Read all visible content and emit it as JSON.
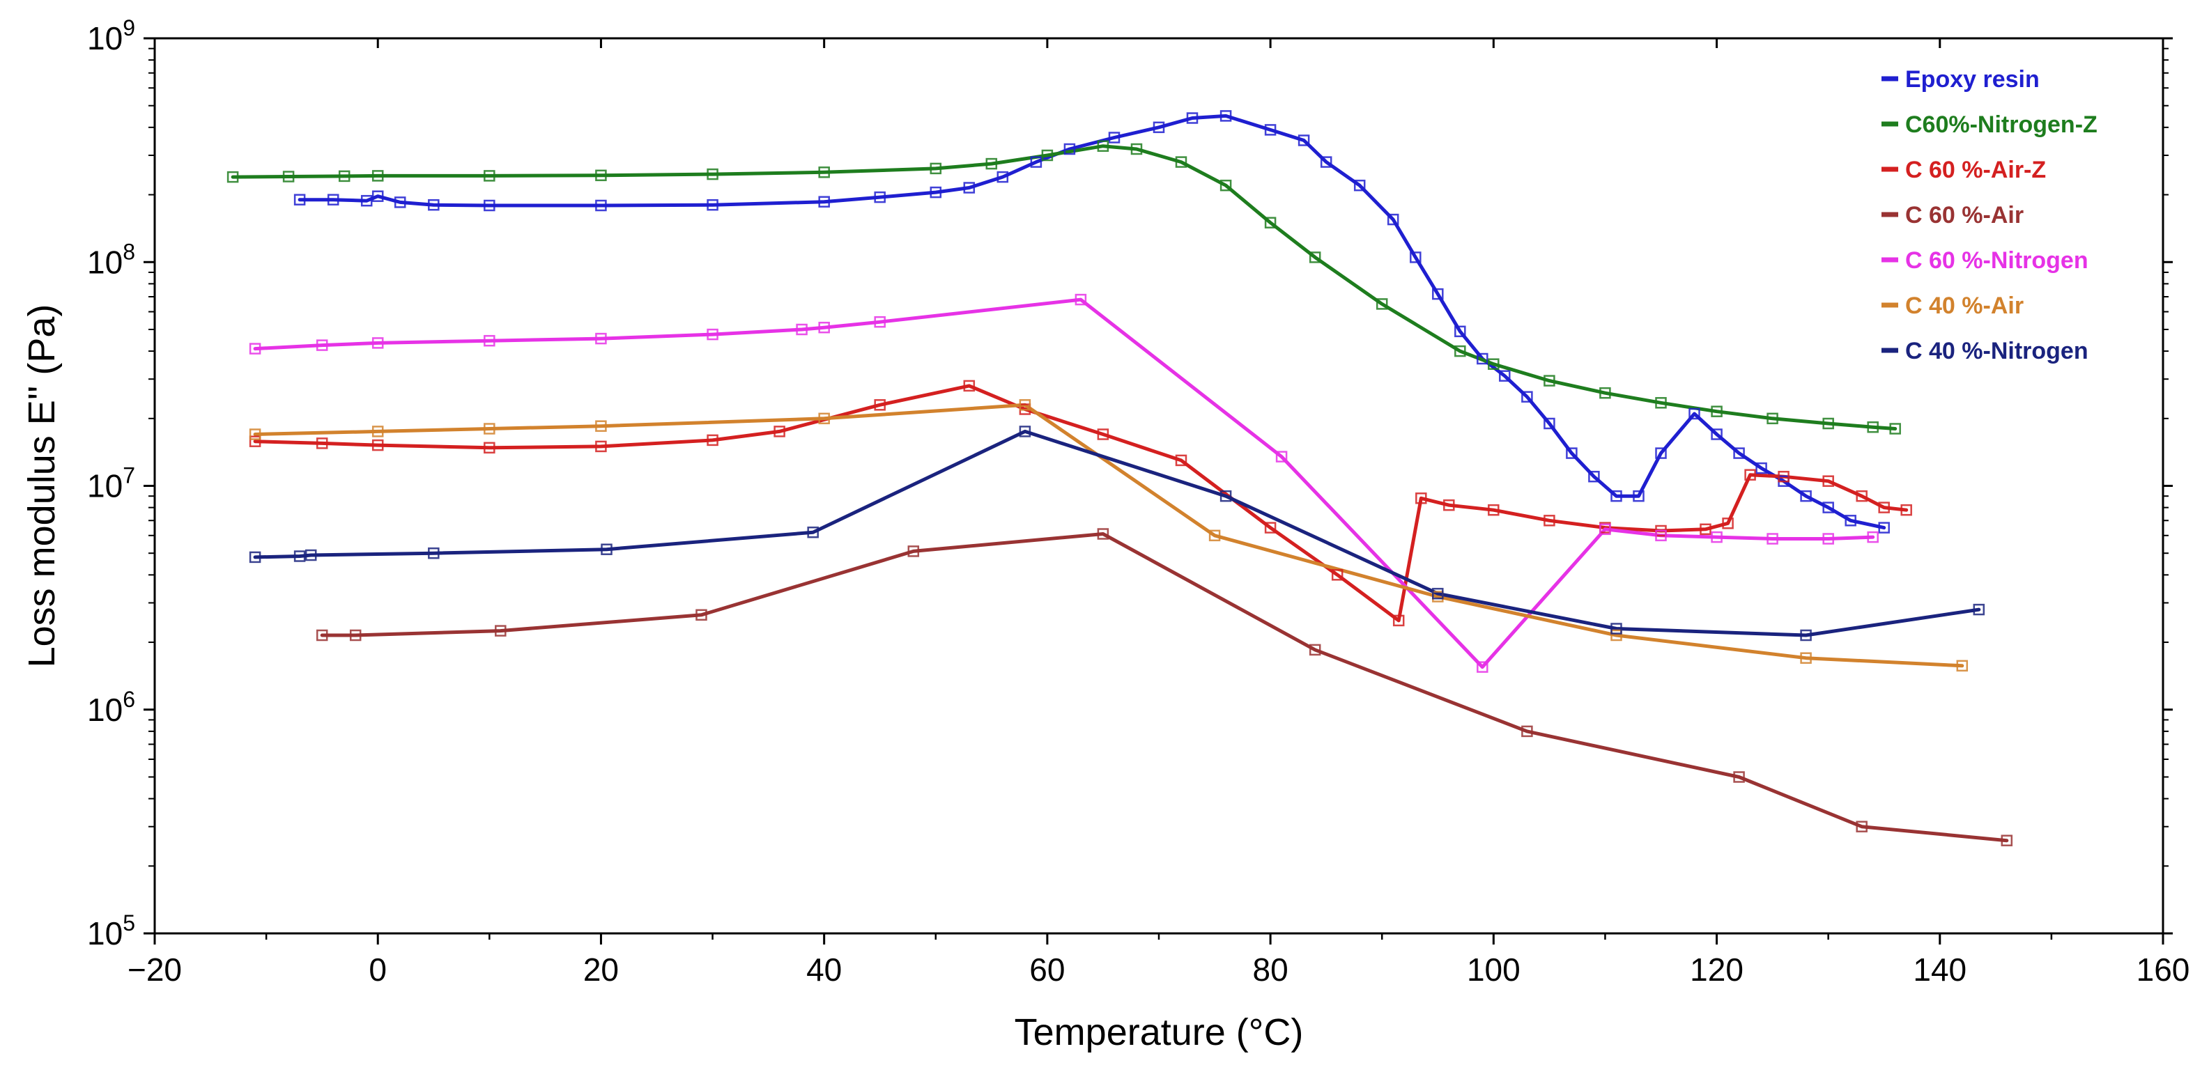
{
  "chart_data": {
    "type": "line",
    "title": "",
    "xlabel": "Temperature (°C)",
    "ylabel": "Loss modulus E'' (Pa)",
    "xlim": [
      -20,
      160
    ],
    "ylim": [
      100000,
      1000000000
    ],
    "yscale": "log",
    "grid": false,
    "legend_position": "top-right",
    "x_ticks": [
      -20,
      0,
      20,
      40,
      60,
      80,
      100,
      120,
      140,
      160
    ],
    "x_tick_labels": [
      "−20",
      "0",
      "20",
      "40",
      "60",
      "80",
      "100",
      "120",
      "140",
      "160"
    ],
    "y_ticks": [
      100000,
      1000000,
      10000000,
      100000000,
      1000000000
    ],
    "y_tick_labels": [
      {
        "base": "10",
        "exp": "5"
      },
      {
        "base": "10",
        "exp": "6"
      },
      {
        "base": "10",
        "exp": "7"
      },
      {
        "base": "10",
        "exp": "8"
      },
      {
        "base": "10",
        "exp": "9"
      }
    ],
    "series": [
      {
        "name": "Epoxy resin",
        "color": "#1f1fd0",
        "x": [
          -7,
          -4,
          -1,
          0,
          2,
          5,
          10,
          20,
          30,
          40,
          45,
          50,
          53,
          56,
          59,
          62,
          66,
          70,
          73,
          76,
          80,
          83,
          85,
          88,
          91,
          93,
          95,
          97,
          99,
          101,
          103,
          105,
          107,
          109,
          111,
          113,
          115,
          118,
          120,
          122,
          124,
          126,
          128,
          130,
          132,
          135
        ],
        "y": [
          190000000,
          190000000,
          188000000,
          197000000,
          185000000,
          180000000,
          179000000,
          179000000,
          180000000,
          186000000,
          195000000,
          205000000,
          215000000,
          240000000,
          280000000,
          320000000,
          360000000,
          400000000,
          440000000,
          450000000,
          390000000,
          350000000,
          280000000,
          220000000,
          155000000,
          105000000,
          72000000,
          49000000,
          37000000,
          31000000,
          25000000,
          19000000,
          14000000,
          11000000,
          9000000,
          9000000,
          14000000,
          21000000,
          17000000,
          14000000,
          12000000,
          10500000,
          9000000,
          8000000,
          7000000,
          6500000
        ]
      },
      {
        "name": "C60%-Nitrogen-Z",
        "color": "#1e7d1e",
        "x": [
          -13,
          -8,
          -3,
          0,
          10,
          20,
          30,
          40,
          50,
          55,
          60,
          65,
          68,
          72,
          76,
          80,
          84,
          90,
          97,
          100,
          105,
          110,
          115,
          120,
          125,
          130,
          134,
          136
        ],
        "y": [
          240000000,
          241000000,
          242000000,
          243000000,
          243000000,
          244000000,
          247000000,
          252000000,
          262000000,
          275000000,
          300000000,
          330000000,
          320000000,
          280000000,
          220000000,
          150000000,
          105000000,
          65000000,
          40000000,
          35000000,
          29500000,
          26000000,
          23500000,
          21500000,
          20000000,
          19000000,
          18300000,
          18000000
        ]
      },
      {
        "name": "C 60 %-Air-Z",
        "color": "#d42020",
        "x": [
          -11,
          -5,
          0,
          10,
          20,
          30,
          36,
          45,
          53,
          58,
          65,
          72,
          80,
          86,
          91.5,
          93.5,
          96,
          100,
          105,
          110,
          115,
          119,
          121,
          123,
          126,
          130,
          133,
          135,
          137
        ],
        "y": [
          15800000,
          15500000,
          15200000,
          14800000,
          15000000,
          16000000,
          17500000,
          23000000,
          28000000,
          22000000,
          17000000,
          13000000,
          6500000,
          4000000,
          2500000,
          8800000,
          8200000,
          7800000,
          7000000,
          6500000,
          6300000,
          6400000,
          6800000,
          11200000,
          11000000,
          10500000,
          9000000,
          8000000,
          7800000
        ]
      },
      {
        "name": "C 60 %-Air",
        "color": "#993333",
        "x": [
          -5,
          -2,
          11,
          29,
          48,
          65,
          84,
          103,
          122,
          133,
          146
        ],
        "y": [
          2150000,
          2150000,
          2250000,
          2650000,
          5100000,
          6100000,
          1850000,
          800000,
          500000,
          300000,
          260000
        ]
      },
      {
        "name": "C 60 %-Nitrogen",
        "color": "#e632e6",
        "x": [
          -11,
          -5,
          0,
          10,
          20,
          30,
          38,
          40,
          45,
          63,
          81,
          99,
          110,
          115,
          120,
          125,
          130,
          134
        ],
        "y": [
          41000000,
          42500000,
          43500000,
          44500000,
          45500000,
          47500000,
          50000000,
          51000000,
          54000000,
          68000000,
          13500000,
          1550000,
          6400000,
          6000000,
          5900000,
          5800000,
          5800000,
          5900000
        ]
      },
      {
        "name": "C 40 %-Air",
        "color": "#d2822d",
        "x": [
          -11,
          0,
          10,
          20,
          40,
          58,
          75,
          95,
          111,
          128,
          142
        ],
        "y": [
          17000000,
          17500000,
          18000000,
          18500000,
          20000000,
          23000000,
          6000000,
          3200000,
          2150000,
          1700000,
          1570000
        ]
      },
      {
        "name": "C 40 %-Nitrogen",
        "color": "#1a237e",
        "x": [
          -11,
          -7,
          -6,
          5,
          20.5,
          39,
          58,
          76,
          95,
          111,
          128,
          143.5
        ],
        "y": [
          4800000,
          4850000,
          4900000,
          5000000,
          5200000,
          6200000,
          17500000,
          9000000,
          3300000,
          2300000,
          2150000,
          2800000
        ]
      }
    ]
  }
}
